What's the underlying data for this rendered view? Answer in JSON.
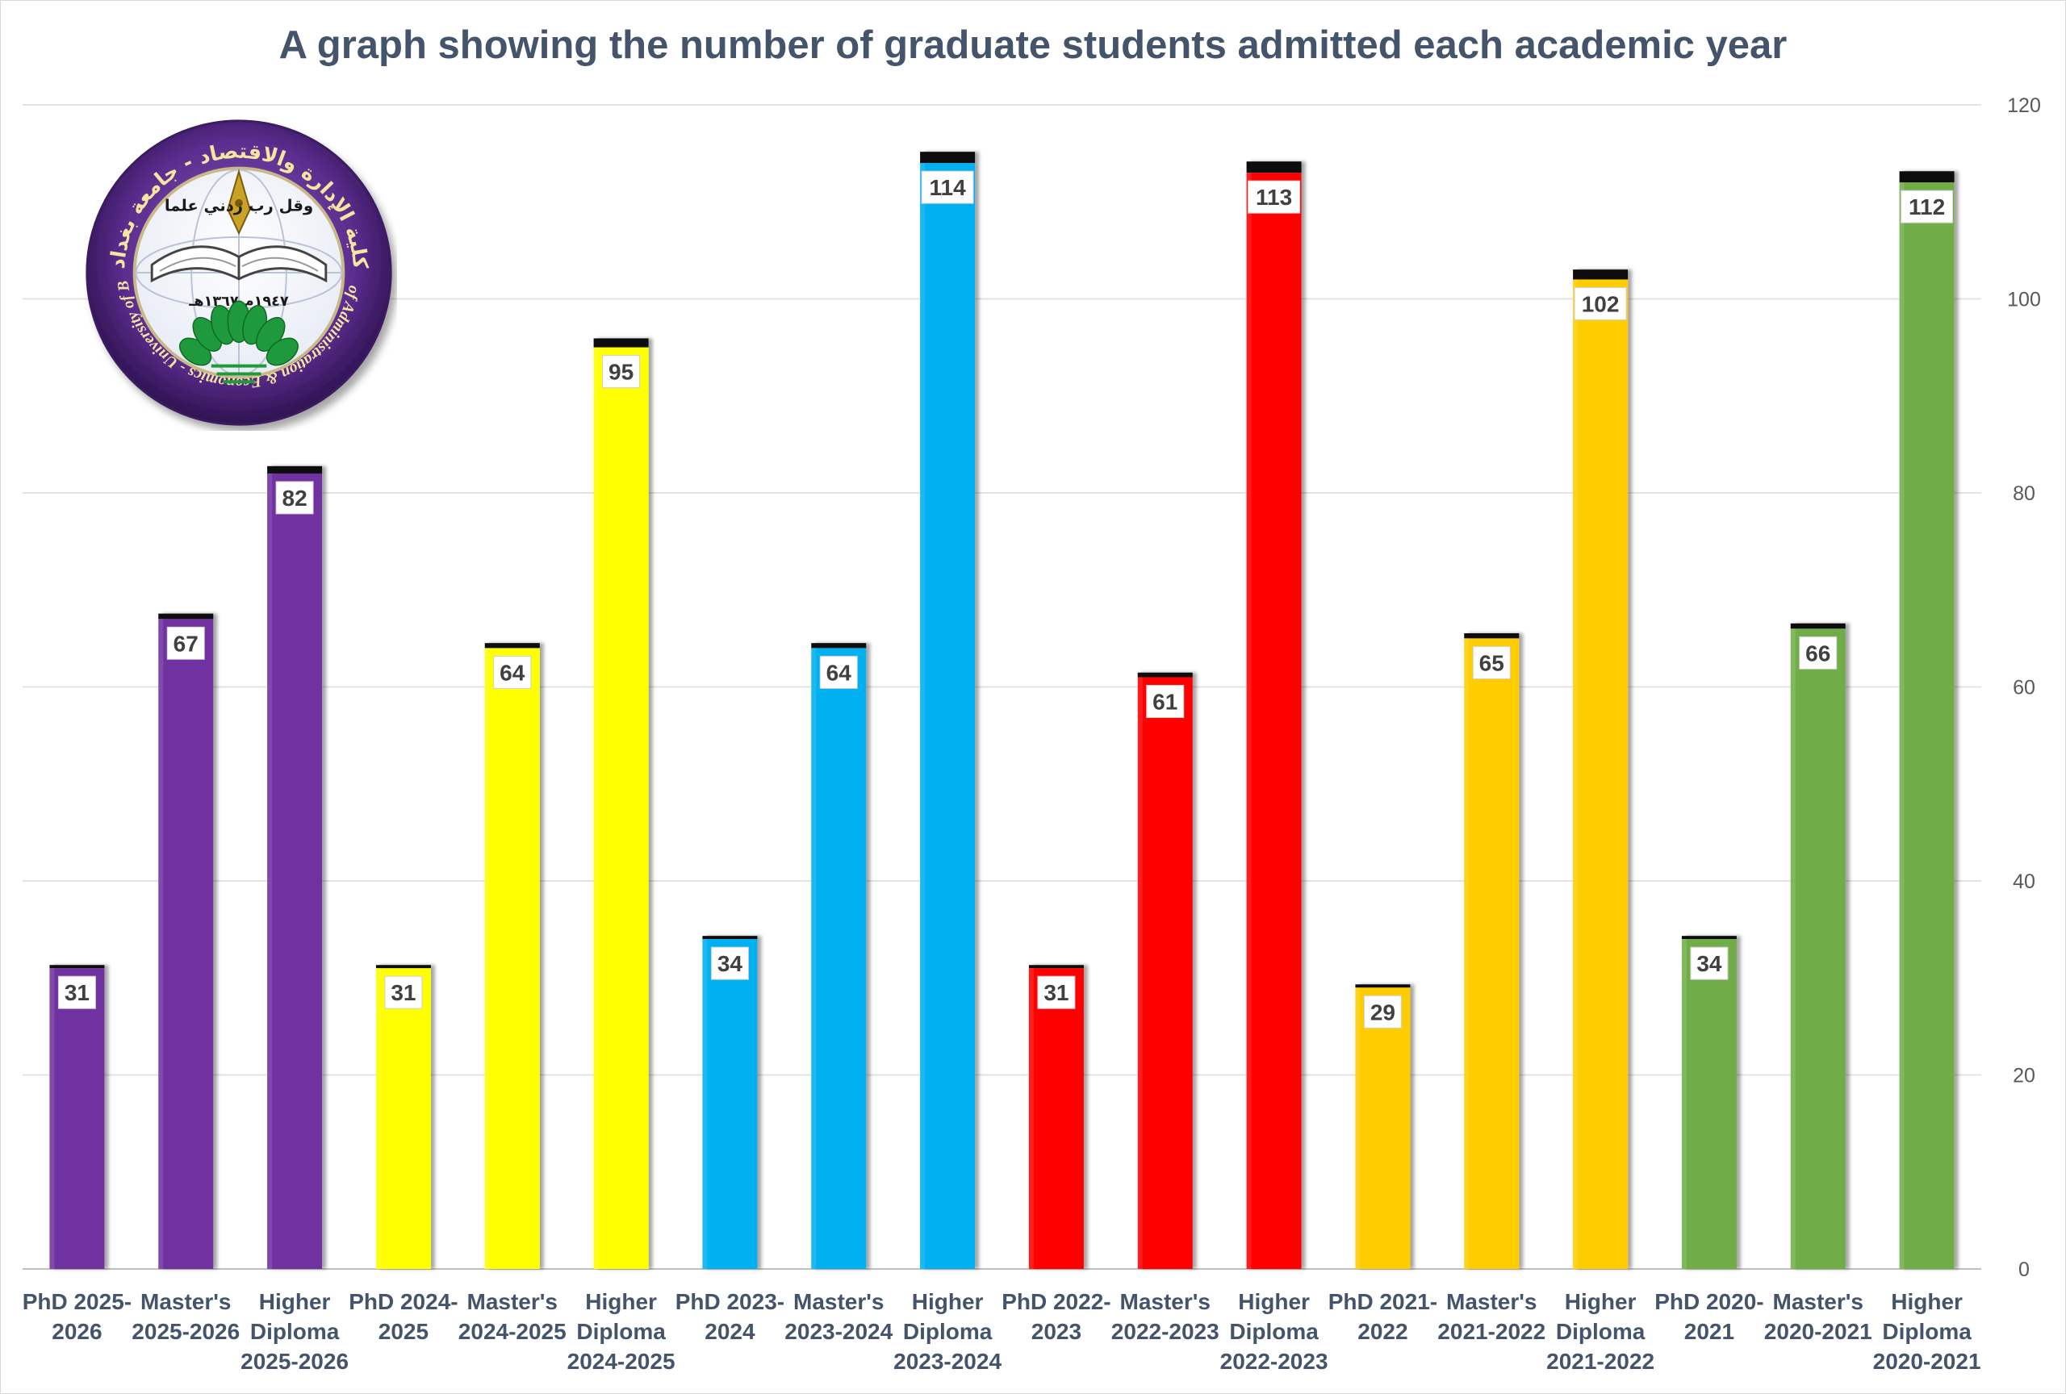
{
  "chart_data": {
    "type": "bar",
    "title": "A graph showing the number of graduate students admitted each academic year",
    "xlabel": "",
    "ylabel": "",
    "ylim": [
      0,
      120
    ],
    "y_ticks": [
      0,
      20,
      40,
      60,
      80,
      100,
      120
    ],
    "y_axis_side": "right",
    "grid": true,
    "legend": "none",
    "categories": [
      [
        "PhD 2025-",
        "2026"
      ],
      [
        "Master's",
        "2025-2026"
      ],
      [
        "Higher",
        "Diploma",
        "2025-2026"
      ],
      [
        "PhD 2024-",
        "2025"
      ],
      [
        "Master's",
        "2024-2025"
      ],
      [
        "Higher",
        "Diploma",
        "2024-2025"
      ],
      [
        "PhD 2023-",
        "2024"
      ],
      [
        "Master's",
        "2023-2024"
      ],
      [
        "Higher",
        "Diploma",
        "2023-2024"
      ],
      [
        "PhD 2022-",
        "2023"
      ],
      [
        "Master's",
        "2022-2023"
      ],
      [
        "Higher",
        "Diploma",
        "2022-2023"
      ],
      [
        "PhD 2021-",
        "2022"
      ],
      [
        "Master's",
        "2021-2022"
      ],
      [
        "Higher",
        "Diploma",
        "2021-2022"
      ],
      [
        "PhD 2020-",
        "2021"
      ],
      [
        "Master's",
        "2020-2021"
      ],
      [
        "Higher",
        "Diploma",
        "2020-2021"
      ]
    ],
    "values": [
      31,
      67,
      82,
      31,
      64,
      95,
      34,
      64,
      114,
      31,
      61,
      113,
      29,
      65,
      102,
      34,
      66,
      112
    ],
    "colors": [
      "#7030a0",
      "#7030a0",
      "#7030a0",
      "#ffff00",
      "#ffff00",
      "#ffff00",
      "#00b0f0",
      "#00b0f0",
      "#00b0f0",
      "#ff0000",
      "#ff0000",
      "#ff0000",
      "#ffcc00",
      "#ffcc00",
      "#ffcc00",
      "#70ad47",
      "#70ad47",
      "#70ad47"
    ]
  },
  "logo": {
    "arabic_ring_text": "كلية الإدارة والاقتصاد - جامعة بغداد",
    "english_ring_text": "College of Administration & Economics - University of Baghdad",
    "motto": "وقل رب زدني علما",
    "founding_date": "١٩٤٧م ١٣٦٧هـ",
    "ring_color": "#5b2d8e",
    "leaf_color": "#1e9a3c"
  }
}
